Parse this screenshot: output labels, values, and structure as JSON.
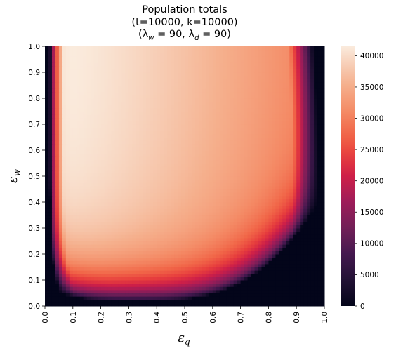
{
  "chart_data": {
    "type": "heatmap",
    "title_lines": [
      "Population totals",
      "(t=10000, k=10000)",
      "(λ_w = 90, λ_d = 90)"
    ],
    "xlabel": {
      "symbol": "ε",
      "sub": "q"
    },
    "ylabel": {
      "symbol": "ε",
      "sub": "w"
    },
    "x_ticks": [
      "0.0",
      "0.1",
      "0.2",
      "0.3",
      "0.4",
      "0.5",
      "0.6",
      "0.7",
      "0.8",
      "0.9",
      "1.0"
    ],
    "y_ticks": [
      "0.0",
      "0.1",
      "0.2",
      "0.3",
      "0.4",
      "0.5",
      "0.6",
      "0.7",
      "0.8",
      "0.9",
      "1.0"
    ],
    "xlim": [
      0,
      1
    ],
    "ylim": [
      0,
      1
    ],
    "colorbar": {
      "range": [
        0,
        41500
      ],
      "ticks": [
        "0",
        "5000",
        "10000",
        "15000",
        "20000",
        "25000",
        "30000",
        "35000",
        "40000"
      ],
      "tick_values": [
        0,
        5000,
        10000,
        15000,
        20000,
        25000,
        30000,
        35000,
        40000
      ],
      "colormap": "rocket"
    },
    "sample_values": [
      {
        "eps_q": 0.02,
        "eps_w": 0.5,
        "value": 0
      },
      {
        "eps_q": 0.1,
        "eps_w": 0.9,
        "value": 41000
      },
      {
        "eps_q": 0.3,
        "eps_w": 0.5,
        "value": 38000
      },
      {
        "eps_q": 0.5,
        "eps_w": 0.5,
        "value": 36000
      },
      {
        "eps_q": 0.8,
        "eps_w": 0.8,
        "value": 33000
      },
      {
        "eps_q": 0.9,
        "eps_w": 0.7,
        "value": 25000
      },
      {
        "eps_q": 0.3,
        "eps_w": 0.1,
        "value": 22000
      },
      {
        "eps_q": 0.5,
        "eps_w": 0.04,
        "value": 6000
      },
      {
        "eps_q": 0.99,
        "eps_w": 0.5,
        "value": 0
      }
    ]
  }
}
